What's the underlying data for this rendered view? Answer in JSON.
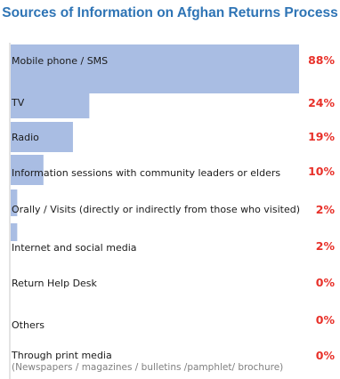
{
  "chart_data": {
    "type": "bar",
    "orientation": "horizontal",
    "title": "Sources of Information on Afghan Returns Process",
    "categories": [
      "Mobile phone / SMS",
      "TV",
      "Radio",
      "Information sessions with community leaders or elders",
      "Orally / Visits (directly or indirectly from those who visited)",
      "Internet and social media",
      "Return Help Desk",
      "Others",
      "Through print media"
    ],
    "category_notes": [
      "",
      "",
      "",
      "",
      "",
      "",
      "",
      "",
      "(Newspapers / magazines / bulletins /pamphlet/ brochure)"
    ],
    "values": [
      88,
      24,
      19,
      10,
      2,
      2,
      0,
      0,
      0
    ],
    "value_labels": [
      "88%",
      "24%",
      "19%",
      "10%",
      "2%",
      "2%",
      "0%",
      "0%",
      "0%"
    ],
    "unit": "%",
    "xlim": [
      0,
      100
    ],
    "grid": false,
    "legend": "none",
    "bar_color": "#a9bde3",
    "value_color": "#e8312a",
    "title_color": "#2e74b5"
  }
}
